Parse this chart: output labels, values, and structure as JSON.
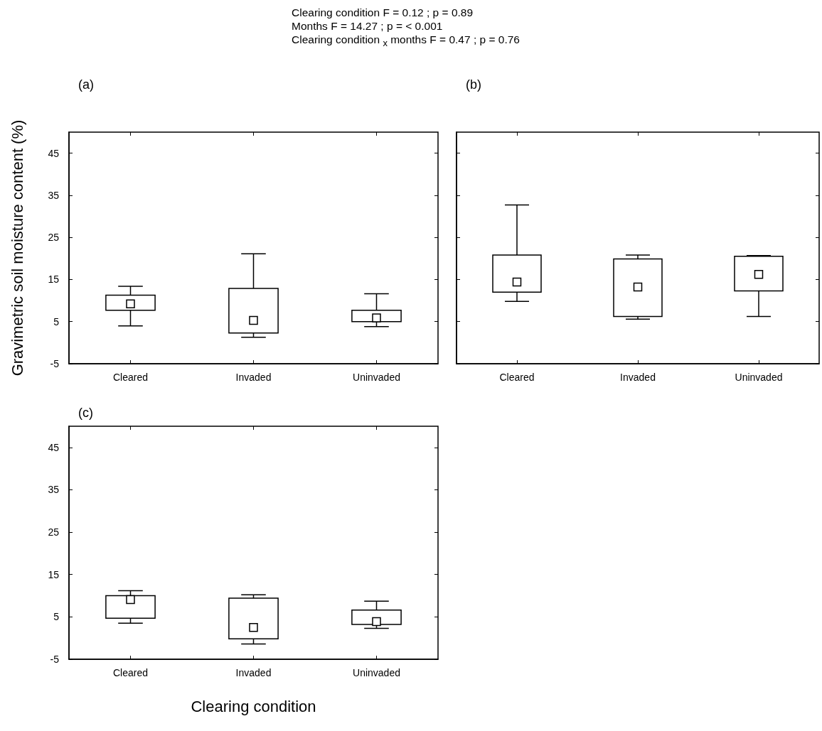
{
  "chart_data": [
    {
      "type": "box",
      "title": "(a)",
      "ylabel": "Gravimetric soil moisture content (%)",
      "annotations": [
        "Clearing condition F = 0.12 ; p = 0.89",
        "Months F = 14.27  ; p = < 0.001",
        "Clearing condition $_{x}$ months F = 0.47 ; p = 0.76"
      ],
      "categories": [
        "Cleared",
        "Invaded",
        "Uninvaded"
      ],
      "marker": "square",
      "boxes": [
        {
          "low": 4.0,
          "q1": 7.7,
          "median": 9.2,
          "q3": 11.3,
          "high": 13.4
        },
        {
          "low": 1.3,
          "q1": 2.3,
          "median": 5.3,
          "q3": 12.9,
          "high": 21.1
        },
        {
          "low": 3.8,
          "q1": 5.0,
          "median": 5.9,
          "q3": 7.7,
          "high": 11.6
        }
      ],
      "ylim": [
        -5,
        50
      ],
      "yticks": [
        -5,
        5,
        15,
        25,
        35,
        45
      ]
    },
    {
      "type": "box",
      "title": "(b)",
      "categories": [
        "Cleared",
        "Invaded",
        "Uninvaded"
      ],
      "marker": "square",
      "tick_labels": "x",
      "boxes": [
        {
          "low": 9.8,
          "q1": 12.0,
          "median": 14.4,
          "q3": 20.8,
          "high": 32.7
        },
        {
          "low": 5.6,
          "q1": 6.2,
          "median": 13.2,
          "q3": 19.9,
          "high": 20.8
        },
        {
          "low": 6.2,
          "q1": 12.3,
          "median": 16.2,
          "q3": 20.5,
          "high": 20.7
        }
      ],
      "ylim": [
        -5,
        50
      ],
      "yticks": [
        -5,
        5,
        15,
        25,
        35,
        45
      ]
    },
    {
      "type": "box",
      "title": "(c)",
      "xlabel": "Clearing condition",
      "categories": [
        "Cleared",
        "Invaded",
        "Uninvaded"
      ],
      "marker": "square",
      "boxes": [
        {
          "low": 3.5,
          "q1": 4.7,
          "median": 9.1,
          "q3": 10.0,
          "high": 11.2
        },
        {
          "low": -1.4,
          "q1": -0.2,
          "median": 2.5,
          "q3": 9.4,
          "high": 10.2
        },
        {
          "low": 2.3,
          "q1": 3.2,
          "median": 3.9,
          "q3": 6.6,
          "high": 8.7
        }
      ],
      "ylim": [
        -5,
        50
      ],
      "yticks": [
        -5,
        5,
        15,
        25,
        35,
        45
      ]
    }
  ]
}
